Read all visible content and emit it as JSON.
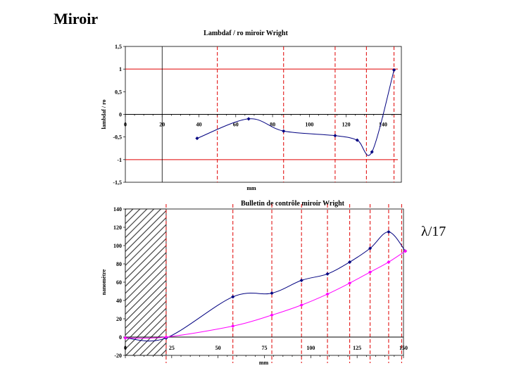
{
  "slide_title": "Miroir",
  "side_note": "λ/17",
  "chart_data": [
    {
      "type": "line",
      "title": "Lambdaf / ro miroir Wright",
      "xlabel": "mm",
      "ylabel": "lambdaf / ro",
      "xlim": [
        0,
        150
      ],
      "ylim": [
        -1.5,
        1.5
      ],
      "x_ticks": [
        0,
        20,
        40,
        60,
        80,
        100,
        120,
        140
      ],
      "y_ticks": [
        1.5,
        1,
        0.5,
        0,
        -0.5,
        -1,
        -1.5
      ],
      "y_tick_labels": [
        "1,5",
        "1",
        "0,5",
        "0",
        "-0,5",
        "-1",
        "-1,5"
      ],
      "grid": false,
      "reference_lines_y": [
        1,
        -1
      ],
      "vertical_line_x": 20,
      "dashed_lines_x": [
        50,
        86,
        114,
        131,
        146
      ],
      "series": [
        {
          "color": "#000080",
          "x": [
            39,
            67,
            86,
            114,
            126,
            134,
            146
          ],
          "y": [
            -0.53,
            -0.1,
            -0.37,
            -0.47,
            -0.57,
            -0.83,
            0.98
          ]
        }
      ]
    },
    {
      "type": "line",
      "title": "Bulletin de contrôle miroir Wright",
      "xlabel": "mm",
      "ylabel": "nanomètre",
      "xlim": [
        0,
        150
      ],
      "ylim": [
        -20,
        140
      ],
      "x_ticks": [
        0,
        25,
        50,
        75,
        100,
        125,
        150
      ],
      "y_ticks": [
        140,
        120,
        100,
        80,
        60,
        40,
        20,
        0,
        -20
      ],
      "grid": false,
      "hatched_region_x": [
        0,
        22
      ],
      "dashed_lines_x": [
        22,
        58,
        79,
        95,
        109,
        121,
        132,
        142,
        149
      ],
      "series": [
        {
          "color": "#000080",
          "x": [
            0,
            22,
            58,
            79,
            95,
            109,
            121,
            132,
            142,
            151
          ],
          "y": [
            -1,
            -1,
            44,
            48,
            62,
            69,
            82,
            97,
            115,
            94
          ]
        },
        {
          "color": "#ff00ff",
          "x": [
            0,
            22,
            58,
            79,
            95,
            109,
            121,
            132,
            142,
            151
          ],
          "y": [
            -1,
            0,
            12,
            24,
            35,
            47,
            59,
            71,
            82,
            94
          ]
        }
      ]
    }
  ]
}
